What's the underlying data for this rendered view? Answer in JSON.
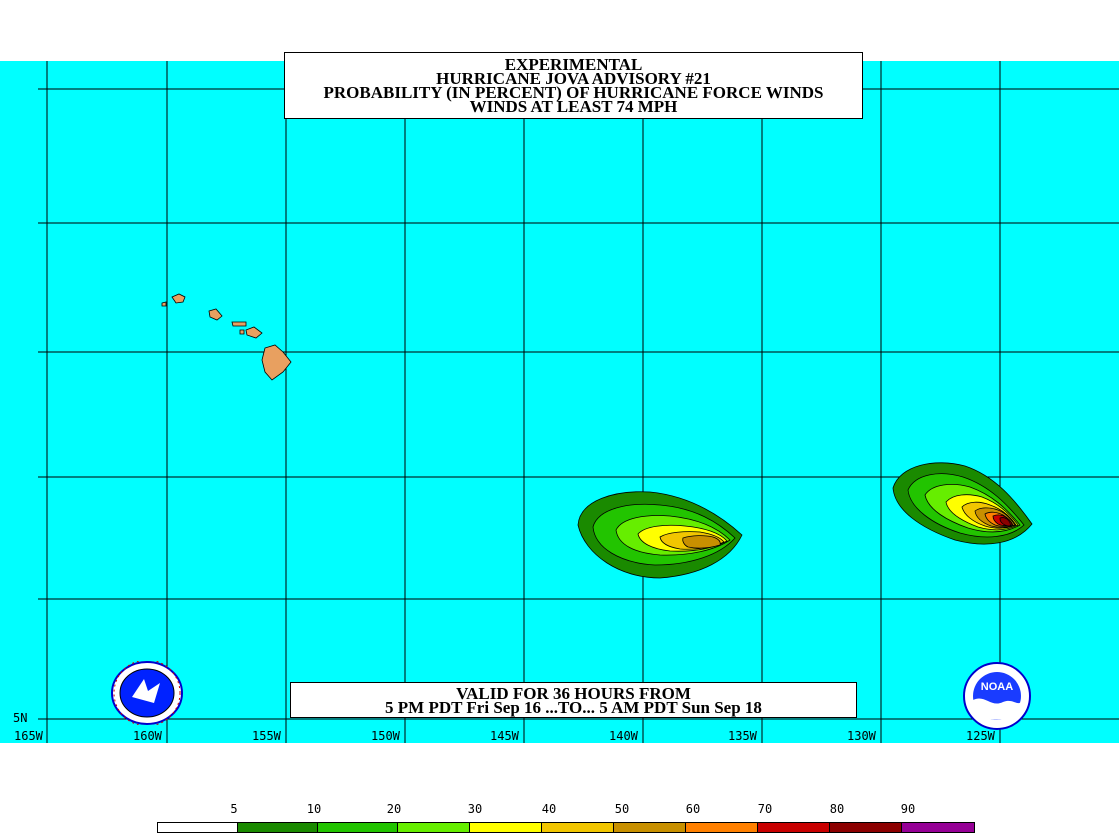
{
  "title": {
    "line1": "EXPERIMENTAL",
    "line2": "HURRICANE JOVA ADVISORY #21",
    "line3": "PROBABILITY (IN PERCENT) OF HURRICANE FORCE WINDS",
    "line4": "WINDS AT LEAST 74 MPH"
  },
  "valid": {
    "line1": "VALID FOR 36 HOURS FROM",
    "line2": "5 PM PDT Fri Sep 16 ...TO... 5 AM PDT Sun Sep 18"
  },
  "axes": {
    "longitude_labels": [
      "165W",
      "160W",
      "155W",
      "150W",
      "145W",
      "140W",
      "135W",
      "130W",
      "125W"
    ],
    "latitude_labels": [
      "5N"
    ]
  },
  "legend": {
    "labels": [
      "5",
      "10",
      "20",
      "30",
      "40",
      "50",
      "60",
      "70",
      "80",
      "90"
    ],
    "colors": [
      "#ffffff",
      "#1a8a00",
      "#22c400",
      "#66ee00",
      "#ffff00",
      "#f2c600",
      "#c89000",
      "#ff8000",
      "#c80000",
      "#8c0000",
      "#960096"
    ]
  },
  "colors": {
    "ocean": "#00ffff",
    "land": "#e8a060",
    "grid": "#000000"
  },
  "logos": {
    "left": "nws-logo",
    "right": "noaa-logo",
    "right_text": "NOAA"
  }
}
